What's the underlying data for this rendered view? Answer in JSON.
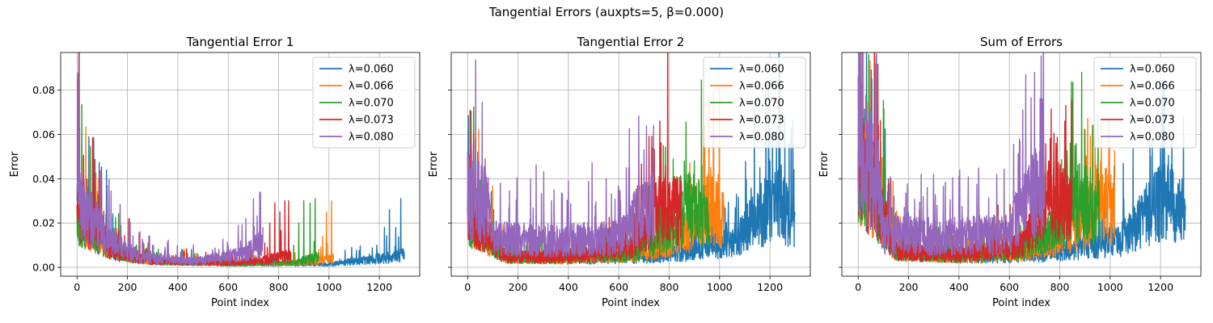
{
  "figure_title": "Tangential Errors (auxpts=5, β=0.000)",
  "colors": {
    "λ=0.060": "#1f77b4",
    "λ=0.066": "#ff7f0e",
    "λ=0.070": "#2ca02c",
    "λ=0.073": "#d62728",
    "λ=0.080": "#9467bd"
  },
  "chart_data": [
    {
      "type": "line",
      "title": "Tangential Error 1",
      "xlabel": "Point index",
      "ylabel": "Error",
      "xlim": [
        -65,
        1360
      ],
      "ylim": [
        -0.004,
        0.097
      ],
      "xticks": [
        0,
        200,
        400,
        600,
        800,
        1000,
        1200
      ],
      "yticks": [
        0.0,
        0.02,
        0.04,
        0.06,
        0.08
      ],
      "ytick_labels": [
        "0.00",
        "0.02",
        "0.04",
        "0.06",
        "0.08"
      ],
      "grid": true,
      "legend": "top-right",
      "series": [
        {
          "name": "λ=0.060",
          "n": 1300,
          "first_y": 0.03,
          "profile": [
            [
              0,
              0.03
            ],
            [
              60,
              0.02
            ],
            [
              150,
              0.008
            ],
            [
              300,
              0.003
            ],
            [
              600,
              0.0015
            ],
            [
              1000,
              0.0015
            ],
            [
              1100,
              0.003
            ],
            [
              1250,
              0.005
            ],
            [
              1299,
              0.006
            ]
          ],
          "spikes": [
            [
              1130,
              0.004
            ],
            [
              1160,
              0.006
            ],
            [
              1190,
              0.01
            ],
            [
              1220,
              0.018
            ],
            [
              1240,
              0.026
            ],
            [
              1265,
              0.018
            ],
            [
              1285,
              0.031
            ]
          ]
        },
        {
          "name": "λ=0.066",
          "n": 1020,
          "first_y": 0.028,
          "profile": [
            [
              0,
              0.028
            ],
            [
              60,
              0.02
            ],
            [
              150,
              0.008
            ],
            [
              300,
              0.003
            ],
            [
              600,
              0.0015
            ],
            [
              900,
              0.002
            ],
            [
              1019,
              0.004
            ]
          ],
          "spikes": [
            [
              960,
              0.008
            ],
            [
              975,
              0.014
            ],
            [
              990,
              0.025
            ],
            [
              1010,
              0.03
            ]
          ]
        },
        {
          "name": "λ=0.070",
          "n": 960,
          "first_y": 0.028,
          "profile": [
            [
              0,
              0.028
            ],
            [
              60,
              0.02
            ],
            [
              150,
              0.008
            ],
            [
              300,
              0.003
            ],
            [
              600,
              0.0015
            ],
            [
              850,
              0.002
            ],
            [
              959,
              0.005
            ]
          ],
          "spikes": [
            [
              860,
              0.01
            ],
            [
              880,
              0.02
            ],
            [
              900,
              0.03
            ],
            [
              925,
              0.029
            ],
            [
              945,
              0.031
            ]
          ]
        },
        {
          "name": "λ=0.073",
          "n": 850,
          "first_y": 0.028,
          "profile": [
            [
              0,
              0.028
            ],
            [
              60,
              0.02
            ],
            [
              150,
              0.008
            ],
            [
              300,
              0.003
            ],
            [
              600,
              0.002
            ],
            [
              720,
              0.003
            ],
            [
              849,
              0.006
            ]
          ],
          "spikes": [
            [
              745,
              0.011
            ],
            [
              765,
              0.02
            ],
            [
              785,
              0.029
            ],
            [
              805,
              0.025
            ],
            [
              825,
              0.03
            ],
            [
              840,
              0.03
            ]
          ]
        },
        {
          "name": "λ=0.080",
          "n": 740,
          "first_y": 0.034,
          "profile": [
            [
              0,
              0.034
            ],
            [
              50,
              0.024
            ],
            [
              120,
              0.014
            ],
            [
              250,
              0.005
            ],
            [
              450,
              0.003
            ],
            [
              600,
              0.005
            ],
            [
              680,
              0.008
            ],
            [
              739,
              0.012
            ]
          ],
          "spikes": [
            [
              20,
              0.035
            ],
            [
              50,
              0.028
            ],
            [
              90,
              0.022
            ],
            [
              150,
              0.015
            ],
            [
              600,
              0.01
            ],
            [
              640,
              0.019
            ],
            [
              670,
              0.022
            ],
            [
              700,
              0.031
            ],
            [
              725,
              0.034
            ]
          ]
        }
      ]
    },
    {
      "type": "line",
      "title": "Tangential Error 2",
      "xlabel": "Point index",
      "ylabel": "Error",
      "xlim": [
        -65,
        1360
      ],
      "ylim": [
        -0.004,
        0.097
      ],
      "xticks": [
        0,
        200,
        400,
        600,
        800,
        1000,
        1200
      ],
      "yticks": [
        0.0,
        0.02,
        0.04,
        0.06,
        0.08
      ],
      "ytick_labels": [
        "",
        "",
        "",
        "",
        ""
      ],
      "grid": true,
      "legend": "top-right",
      "series": [
        {
          "name": "λ=0.060",
          "n": 1300,
          "first_y": 0.025,
          "profile": [
            [
              0,
              0.025
            ],
            [
              60,
              0.018
            ],
            [
              150,
              0.005
            ],
            [
              400,
              0.004
            ],
            [
              700,
              0.005
            ],
            [
              900,
              0.008
            ],
            [
              1050,
              0.012
            ],
            [
              1150,
              0.024
            ],
            [
              1230,
              0.032
            ],
            [
              1299,
              0.02
            ]
          ],
          "spikes": [
            [
              1000,
              0.018
            ],
            [
              1060,
              0.02
            ],
            [
              1110,
              0.027
            ],
            [
              1160,
              0.045
            ],
            [
              1200,
              0.048
            ],
            [
              1245,
              0.046
            ],
            [
              1285,
              0.033
            ]
          ]
        },
        {
          "name": "λ=0.066",
          "n": 1020,
          "first_y": 0.025,
          "profile": [
            [
              0,
              0.025
            ],
            [
              60,
              0.018
            ],
            [
              150,
              0.005
            ],
            [
              400,
              0.004
            ],
            [
              650,
              0.006
            ],
            [
              800,
              0.012
            ],
            [
              900,
              0.02
            ],
            [
              960,
              0.03
            ],
            [
              1019,
              0.022
            ]
          ],
          "spikes": [
            [
              850,
              0.024
            ],
            [
              910,
              0.038
            ],
            [
              940,
              0.035
            ],
            [
              965,
              0.045
            ],
            [
              995,
              0.042
            ]
          ]
        },
        {
          "name": "λ=0.070",
          "n": 960,
          "first_y": 0.025,
          "profile": [
            [
              0,
              0.025
            ],
            [
              60,
              0.018
            ],
            [
              150,
              0.005
            ],
            [
              400,
              0.005
            ],
            [
              650,
              0.007
            ],
            [
              800,
              0.018
            ],
            [
              880,
              0.03
            ],
            [
              959,
              0.024
            ]
          ],
          "spikes": [
            [
              800,
              0.03
            ],
            [
              830,
              0.041
            ],
            [
              860,
              0.048
            ],
            [
              900,
              0.048
            ],
            [
              930,
              0.046
            ]
          ]
        },
        {
          "name": "λ=0.073",
          "n": 850,
          "first_y": 0.025,
          "profile": [
            [
              0,
              0.025
            ],
            [
              60,
              0.018
            ],
            [
              150,
              0.005
            ],
            [
              400,
              0.005
            ],
            [
              650,
              0.01
            ],
            [
              760,
              0.03
            ],
            [
              849,
              0.027
            ]
          ],
          "spikes": [
            [
              710,
              0.03
            ],
            [
              760,
              0.041
            ],
            [
              785,
              0.046
            ],
            [
              820,
              0.041
            ]
          ]
        },
        {
          "name": "λ=0.080",
          "n": 740,
          "first_y": 0.052,
          "profile": [
            [
              0,
              0.035
            ],
            [
              80,
              0.03
            ],
            [
              100,
              0.014
            ],
            [
              300,
              0.013
            ],
            [
              600,
              0.014
            ],
            [
              650,
              0.022
            ],
            [
              739,
              0.03
            ]
          ],
          "spikes": [
            [
              15,
              0.056
            ],
            [
              40,
              0.052
            ],
            [
              70,
              0.049
            ],
            [
              130,
              0.038
            ],
            [
              250,
              0.04
            ],
            [
              400,
              0.039
            ],
            [
              550,
              0.04
            ],
            [
              640,
              0.045
            ],
            [
              700,
              0.053
            ],
            [
              730,
              0.054
            ]
          ]
        }
      ]
    },
    {
      "type": "line",
      "title": "Sum of Errors",
      "xlabel": "Point index",
      "ylabel": "Error",
      "xlim": [
        -65,
        1360
      ],
      "ylim": [
        -0.004,
        0.097
      ],
      "xticks": [
        0,
        200,
        400,
        600,
        800,
        1000,
        1200
      ],
      "yticks": [
        0.0,
        0.02,
        0.04,
        0.06,
        0.08
      ],
      "ytick_labels": [
        "",
        "",
        "",
        "",
        ""
      ],
      "grid": true,
      "legend": "top-right",
      "series": [
        {
          "name": "λ=0.060",
          "n": 1300,
          "first_y": 0.055,
          "profile": [
            [
              0,
              0.055
            ],
            [
              60,
              0.038
            ],
            [
              150,
              0.008
            ],
            [
              400,
              0.005
            ],
            [
              700,
              0.006
            ],
            [
              900,
              0.01
            ],
            [
              1050,
              0.014
            ],
            [
              1150,
              0.026
            ],
            [
              1230,
              0.035
            ],
            [
              1299,
              0.022
            ]
          ],
          "spikes": [
            [
              1000,
              0.02
            ],
            [
              1060,
              0.022
            ],
            [
              1110,
              0.03
            ],
            [
              1160,
              0.05
            ],
            [
              1200,
              0.055
            ],
            [
              1245,
              0.06
            ],
            [
              1285,
              0.04
            ]
          ]
        },
        {
          "name": "λ=0.066",
          "n": 1020,
          "first_y": 0.053,
          "profile": [
            [
              0,
              0.053
            ],
            [
              60,
              0.036
            ],
            [
              150,
              0.008
            ],
            [
              400,
              0.005
            ],
            [
              650,
              0.007
            ],
            [
              800,
              0.014
            ],
            [
              900,
              0.022
            ],
            [
              960,
              0.035
            ],
            [
              1019,
              0.026
            ]
          ],
          "spikes": [
            [
              850,
              0.026
            ],
            [
              910,
              0.045
            ],
            [
              940,
              0.06
            ],
            [
              965,
              0.065
            ],
            [
              995,
              0.066
            ]
          ]
        },
        {
          "name": "λ=0.070",
          "n": 960,
          "first_y": 0.053,
          "profile": [
            [
              0,
              0.053
            ],
            [
              60,
              0.036
            ],
            [
              150,
              0.008
            ],
            [
              400,
              0.006
            ],
            [
              650,
              0.008
            ],
            [
              800,
              0.02
            ],
            [
              880,
              0.033
            ],
            [
              959,
              0.028
            ]
          ],
          "spikes": [
            [
              800,
              0.033
            ],
            [
              830,
              0.045
            ],
            [
              860,
              0.055
            ],
            [
              900,
              0.062
            ],
            [
              930,
              0.064
            ]
          ]
        },
        {
          "name": "λ=0.073",
          "n": 850,
          "first_y": 0.053,
          "profile": [
            [
              0,
              0.053
            ],
            [
              60,
              0.036
            ],
            [
              150,
              0.008
            ],
            [
              400,
              0.006
            ],
            [
              650,
              0.011
            ],
            [
              760,
              0.033
            ],
            [
              849,
              0.03
            ]
          ],
          "spikes": [
            [
              710,
              0.033
            ],
            [
              760,
              0.048
            ],
            [
              785,
              0.056
            ],
            [
              820,
              0.066
            ]
          ]
        },
        {
          "name": "λ=0.080",
          "n": 740,
          "first_y": 0.086,
          "profile": [
            [
              0,
              0.06
            ],
            [
              80,
              0.04
            ],
            [
              100,
              0.016
            ],
            [
              300,
              0.015
            ],
            [
              600,
              0.016
            ],
            [
              650,
              0.03
            ],
            [
              739,
              0.04
            ]
          ],
          "spikes": [
            [
              15,
              0.092
            ],
            [
              40,
              0.066
            ],
            [
              70,
              0.059
            ],
            [
              130,
              0.04
            ],
            [
              250,
              0.042
            ],
            [
              400,
              0.041
            ],
            [
              550,
              0.042
            ],
            [
              640,
              0.058
            ],
            [
              665,
              0.087
            ],
            [
              700,
              0.088
            ],
            [
              730,
              0.076
            ]
          ]
        }
      ]
    }
  ]
}
